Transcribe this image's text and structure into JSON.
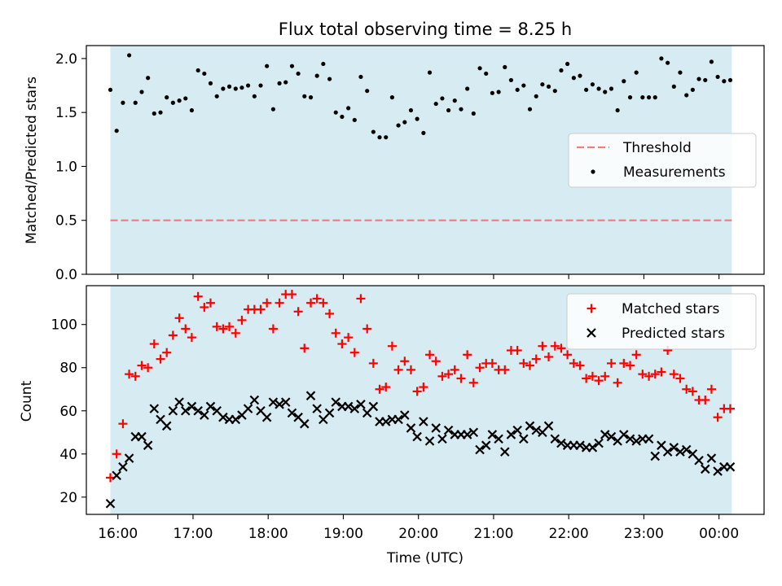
{
  "title": "Flux total observing time = 8.25 h",
  "colors": {
    "observing_span": "#add8e6",
    "threshold": "#f08080",
    "measurements": "#000000",
    "matched": "#ff0000",
    "predicted": "#000000"
  },
  "shared_x": {
    "label": "Time (UTC)",
    "tick_labels": [
      "16:00",
      "17:00",
      "18:00",
      "19:00",
      "20:00",
      "21:00",
      "22:00",
      "23:00",
      "00:00"
    ],
    "tick_hours": [
      16,
      17,
      18,
      19,
      20,
      21,
      22,
      23,
      24
    ],
    "range_hours": [
      15.58,
      24.6
    ],
    "observing_span_hours": [
      15.9,
      24.17
    ]
  },
  "chart_data": [
    {
      "type": "scatter",
      "ylabel": "Matched/Predicted stars",
      "ylim": [
        0,
        2.12
      ],
      "y_ticks": [
        0.0,
        0.5,
        1.0,
        1.5,
        2.0
      ],
      "y_tick_labels": [
        "0.0",
        "0.5",
        "1.0",
        "1.5",
        "2.0"
      ],
      "legend_position": "center-right",
      "threshold": {
        "name": "Threshold",
        "value": 0.5
      },
      "series": [
        {
          "name": "Measurements",
          "x": [
            15.9,
            15.983,
            16.067,
            16.15,
            16.233,
            16.317,
            16.4,
            16.483,
            16.567,
            16.65,
            16.733,
            16.817,
            16.9,
            16.983,
            17.067,
            17.15,
            17.233,
            17.317,
            17.4,
            17.483,
            17.567,
            17.65,
            17.733,
            17.817,
            17.9,
            17.983,
            18.067,
            18.15,
            18.233,
            18.317,
            18.4,
            18.483,
            18.567,
            18.65,
            18.733,
            18.817,
            18.9,
            18.983,
            19.067,
            19.15,
            19.233,
            19.317,
            19.4,
            19.483,
            19.567,
            19.65,
            19.733,
            19.817,
            19.9,
            19.983,
            20.067,
            20.15,
            20.233,
            20.317,
            20.4,
            20.483,
            20.567,
            20.65,
            20.733,
            20.817,
            20.9,
            20.983,
            21.067,
            21.15,
            21.233,
            21.317,
            21.4,
            21.483,
            21.567,
            21.65,
            21.733,
            21.817,
            21.9,
            21.983,
            22.067,
            22.15,
            22.233,
            22.317,
            22.4,
            22.483,
            22.567,
            22.65,
            22.733,
            22.817,
            22.9,
            22.983,
            23.067,
            23.15,
            23.233,
            23.317,
            23.4,
            23.483,
            23.567,
            23.65,
            23.733,
            23.817,
            23.9,
            23.983,
            24.067,
            24.15
          ],
          "y": [
            1.71,
            1.33,
            1.59,
            2.03,
            1.59,
            1.69,
            1.82,
            1.49,
            1.5,
            1.64,
            1.59,
            1.61,
            1.63,
            1.52,
            1.89,
            1.86,
            1.77,
            1.65,
            1.72,
            1.74,
            1.72,
            1.73,
            1.75,
            1.65,
            1.75,
            1.93,
            1.53,
            1.77,
            1.78,
            1.93,
            1.86,
            1.65,
            1.64,
            1.84,
            1.95,
            1.81,
            1.5,
            1.46,
            1.54,
            1.43,
            1.83,
            1.7,
            1.32,
            1.27,
            1.27,
            1.64,
            1.38,
            1.41,
            1.52,
            1.44,
            1.31,
            1.87,
            1.58,
            1.63,
            1.52,
            1.61,
            1.53,
            1.72,
            1.49,
            1.91,
            1.86,
            1.68,
            1.69,
            1.92,
            1.8,
            1.71,
            1.75,
            1.53,
            1.65,
            1.76,
            1.74,
            1.7,
            1.89,
            1.95,
            1.82,
            1.84,
            1.71,
            1.76,
            1.72,
            1.69,
            1.72,
            1.52,
            1.79,
            1.64,
            1.87,
            1.64,
            1.64,
            1.64,
            2.0,
            1.96,
            1.74,
            1.87,
            1.66,
            1.71,
            1.81,
            1.8,
            1.97,
            1.83,
            1.79,
            1.8
          ]
        }
      ]
    },
    {
      "type": "scatter",
      "ylabel": "Count",
      "ylim": [
        12,
        118
      ],
      "y_ticks": [
        20,
        40,
        60,
        80,
        100
      ],
      "y_tick_labels": [
        "20",
        "40",
        "60",
        "80",
        "100"
      ],
      "legend_position": "top-right",
      "series": [
        {
          "name": "Matched stars",
          "x": [
            15.9,
            15.983,
            16.067,
            16.15,
            16.233,
            16.317,
            16.4,
            16.483,
            16.567,
            16.65,
            16.733,
            16.817,
            16.9,
            16.983,
            17.067,
            17.15,
            17.233,
            17.317,
            17.4,
            17.483,
            17.567,
            17.65,
            17.733,
            17.817,
            17.9,
            17.983,
            18.067,
            18.15,
            18.233,
            18.317,
            18.4,
            18.483,
            18.567,
            18.65,
            18.733,
            18.817,
            18.9,
            18.983,
            19.067,
            19.15,
            19.233,
            19.317,
            19.4,
            19.483,
            19.567,
            19.65,
            19.733,
            19.817,
            19.9,
            19.983,
            20.067,
            20.15,
            20.233,
            20.317,
            20.4,
            20.483,
            20.567,
            20.65,
            20.733,
            20.817,
            20.9,
            20.983,
            21.067,
            21.15,
            21.233,
            21.317,
            21.4,
            21.483,
            21.567,
            21.65,
            21.733,
            21.817,
            21.9,
            21.983,
            22.067,
            22.15,
            22.233,
            22.317,
            22.4,
            22.483,
            22.567,
            22.65,
            22.733,
            22.817,
            22.9,
            22.983,
            23.067,
            23.15,
            23.233,
            23.317,
            23.4,
            23.483,
            23.567,
            23.65,
            23.733,
            23.817,
            23.9,
            23.983,
            24.067,
            24.15
          ],
          "y": [
            29,
            40,
            54,
            77,
            76,
            81,
            80,
            91,
            84,
            87,
            95,
            103,
            98,
            94,
            113,
            108,
            110,
            99,
            98,
            99,
            96,
            102,
            107,
            107,
            107,
            110,
            98,
            110,
            114,
            114,
            106,
            89,
            110,
            112,
            110,
            105,
            96,
            91,
            94,
            87,
            112,
            98,
            82,
            70,
            71,
            90,
            79,
            83,
            79,
            69,
            71,
            86,
            83,
            76,
            77,
            79,
            75,
            86,
            73,
            80,
            82,
            82,
            79,
            79,
            88,
            88,
            82,
            81,
            84,
            90,
            85,
            90,
            89,
            86,
            82,
            81,
            75,
            76,
            74,
            76,
            82,
            73,
            82,
            81,
            86,
            77,
            76,
            77,
            78,
            88,
            77,
            75,
            70,
            69,
            65,
            65,
            70,
            57,
            61,
            61
          ]
        },
        {
          "name": "Predicted stars",
          "x": [
            15.9,
            15.983,
            16.067,
            16.15,
            16.233,
            16.317,
            16.4,
            16.483,
            16.567,
            16.65,
            16.733,
            16.817,
            16.9,
            16.983,
            17.067,
            17.15,
            17.233,
            17.317,
            17.4,
            17.483,
            17.567,
            17.65,
            17.733,
            17.817,
            17.9,
            17.983,
            18.067,
            18.15,
            18.233,
            18.317,
            18.4,
            18.483,
            18.567,
            18.65,
            18.733,
            18.817,
            18.9,
            18.983,
            19.067,
            19.15,
            19.233,
            19.317,
            19.4,
            19.483,
            19.567,
            19.65,
            19.733,
            19.817,
            19.9,
            19.983,
            20.067,
            20.15,
            20.233,
            20.317,
            20.4,
            20.483,
            20.567,
            20.65,
            20.733,
            20.817,
            20.9,
            20.983,
            21.067,
            21.15,
            21.233,
            21.317,
            21.4,
            21.483,
            21.567,
            21.65,
            21.733,
            21.817,
            21.9,
            21.983,
            22.067,
            22.15,
            22.233,
            22.317,
            22.4,
            22.483,
            22.567,
            22.65,
            22.733,
            22.817,
            22.9,
            22.983,
            23.067,
            23.15,
            23.233,
            23.317,
            23.4,
            23.483,
            23.567,
            23.65,
            23.733,
            23.817,
            23.9,
            23.983,
            24.067,
            24.15
          ],
          "y": [
            17,
            30,
            34,
            38,
            48,
            48,
            44,
            61,
            56,
            53,
            60,
            64,
            60,
            62,
            60,
            58,
            62,
            60,
            57,
            56,
            56,
            58,
            61,
            65,
            60,
            57,
            64,
            63,
            64,
            59,
            57,
            54,
            67,
            61,
            56,
            59,
            64,
            62,
            62,
            61,
            63,
            59,
            62,
            55,
            55,
            56,
            56,
            58,
            52,
            48,
            55,
            46,
            52,
            47,
            51,
            49,
            49,
            49,
            50,
            42,
            44,
            49,
            47,
            41,
            49,
            51,
            47,
            53,
            51,
            50,
            53,
            47,
            45,
            44,
            44,
            44,
            43,
            43,
            45,
            49,
            48,
            46,
            49,
            47,
            46,
            47,
            47,
            39,
            44,
            41,
            43,
            41,
            42,
            40,
            37,
            33,
            38,
            32,
            34,
            34
          ]
        }
      ]
    }
  ]
}
